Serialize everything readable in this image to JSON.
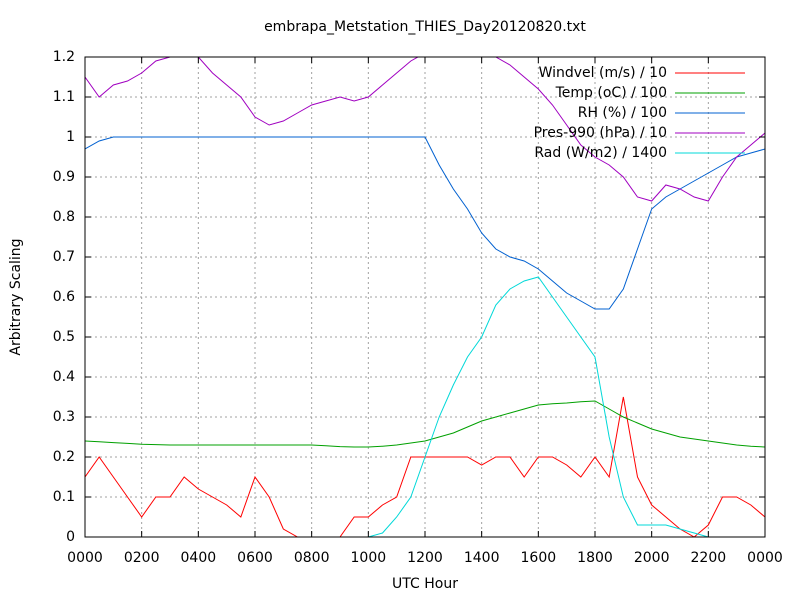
{
  "chart_data": {
    "type": "line",
    "title": "embrapa_Metstation_THIES_Day20120820.txt",
    "x_label": "UTC Hour",
    "y_label": "Arbitrary Scaling",
    "x": [
      0,
      0.5,
      1,
      1.5,
      2,
      2.5,
      3,
      3.5,
      4,
      4.5,
      5,
      5.5,
      6,
      6.5,
      7,
      7.5,
      8,
      8.5,
      9,
      9.5,
      10,
      10.5,
      11,
      11.5,
      12,
      12.5,
      13,
      13.5,
      14,
      14.5,
      15,
      15.5,
      16,
      16.5,
      17,
      17.5,
      18,
      18.5,
      19,
      19.5,
      20,
      20.5,
      21,
      21.5,
      22,
      22.5,
      23,
      23.5,
      24
    ],
    "series": [
      {
        "name": "Windvel (m/s) / 10",
        "color": "#ff0000",
        "values": [
          0.15,
          0.2,
          0.15,
          0.1,
          0.05,
          0.1,
          0.1,
          0.15,
          0.12,
          0.1,
          0.08,
          0.05,
          0.15,
          0.1,
          0.02,
          0,
          0,
          0,
          0,
          0.05,
          0.05,
          0.08,
          0.1,
          0.2,
          0.2,
          0.2,
          0.2,
          0.2,
          0.18,
          0.2,
          0.2,
          0.15,
          0.2,
          0.2,
          0.18,
          0.15,
          0.2,
          0.15,
          0.35,
          0.15,
          0.08,
          0.05,
          0.02,
          0,
          0.03,
          0.1,
          0.1,
          0.08,
          0.05
        ]
      },
      {
        "name": "Temp (oC) / 100",
        "color": "#00a000",
        "values": [
          0.24,
          0.238,
          0.236,
          0.234,
          0.232,
          0.231,
          0.23,
          0.23,
          0.23,
          0.23,
          0.23,
          0.23,
          0.23,
          0.23,
          0.23,
          0.23,
          0.23,
          0.228,
          0.226,
          0.225,
          0.225,
          0.227,
          0.23,
          0.235,
          0.24,
          0.25,
          0.26,
          0.275,
          0.29,
          0.3,
          0.31,
          0.32,
          0.33,
          0.333,
          0.335,
          0.338,
          0.34,
          0.32,
          0.3,
          0.285,
          0.27,
          0.26,
          0.25,
          0.245,
          0.24,
          0.235,
          0.23,
          0.227,
          0.225
        ]
      },
      {
        "name": "RH (%) / 100",
        "color": "#0060d0",
        "values": [
          0.97,
          0.99,
          1,
          1,
          1,
          1,
          1,
          1,
          1,
          1,
          1,
          1,
          1,
          1,
          1,
          1,
          1,
          1,
          1,
          1,
          1,
          1,
          1,
          1,
          1,
          0.93,
          0.87,
          0.82,
          0.76,
          0.72,
          0.7,
          0.69,
          0.67,
          0.64,
          0.61,
          0.59,
          0.57,
          0.57,
          0.62,
          0.72,
          0.82,
          0.85,
          0.87,
          0.89,
          0.91,
          0.93,
          0.95,
          0.96,
          0.97
        ]
      },
      {
        "name": "Pres-990 (hPa) / 10",
        "color": "#a000c0",
        "values": [
          1.15,
          1.1,
          1.13,
          1.14,
          1.16,
          1.19,
          1.2,
          1.21,
          1.2,
          1.16,
          1.13,
          1.1,
          1.05,
          1.03,
          1.04,
          1.06,
          1.08,
          1.09,
          1.1,
          1.09,
          1.1,
          1.13,
          1.16,
          1.19,
          1.21,
          1.23,
          1.24,
          1.23,
          1.22,
          1.2,
          1.18,
          1.15,
          1.12,
          1.08,
          1.03,
          0.98,
          0.95,
          0.93,
          0.9,
          0.85,
          0.84,
          0.88,
          0.87,
          0.85,
          0.84,
          0.9,
          0.95,
          0.98,
          1.01
        ]
      },
      {
        "name": "Rad (W/m2) / 1400",
        "color": "#00d8d8",
        "values": [
          0,
          0,
          0,
          0,
          0,
          0,
          0,
          0,
          0,
          0,
          0,
          0,
          0,
          0,
          0,
          0,
          0,
          0,
          0,
          0,
          0,
          0.01,
          0.05,
          0.1,
          0.2,
          0.3,
          0.38,
          0.45,
          0.5,
          0.58,
          0.62,
          0.64,
          0.65,
          0.6,
          0.55,
          0.5,
          0.45,
          0.25,
          0.1,
          0.03,
          0.03,
          0.03,
          0.02,
          0.01,
          0,
          0,
          0,
          0,
          0
        ]
      }
    ],
    "xlim": [
      0,
      24
    ],
    "xticks": [
      {
        "value": 0,
        "label": "0000"
      },
      {
        "value": 2,
        "label": "0200"
      },
      {
        "value": 4,
        "label": "0400"
      },
      {
        "value": 6,
        "label": "0600"
      },
      {
        "value": 8,
        "label": "0800"
      },
      {
        "value": 10,
        "label": "1000"
      },
      {
        "value": 12,
        "label": "1200"
      },
      {
        "value": 14,
        "label": "1400"
      },
      {
        "value": 16,
        "label": "1600"
      },
      {
        "value": 18,
        "label": "1800"
      },
      {
        "value": 20,
        "label": "2000"
      },
      {
        "value": 22,
        "label": "2200"
      },
      {
        "value": 24,
        "label": "0000"
      }
    ],
    "ylim": [
      0,
      1.2
    ],
    "yticks": [
      0,
      0.1,
      0.2,
      0.3,
      0.4,
      0.5,
      0.6,
      0.7,
      0.8,
      0.9,
      1,
      1.1,
      1.2
    ],
    "grid": true,
    "legend": "top-right"
  }
}
